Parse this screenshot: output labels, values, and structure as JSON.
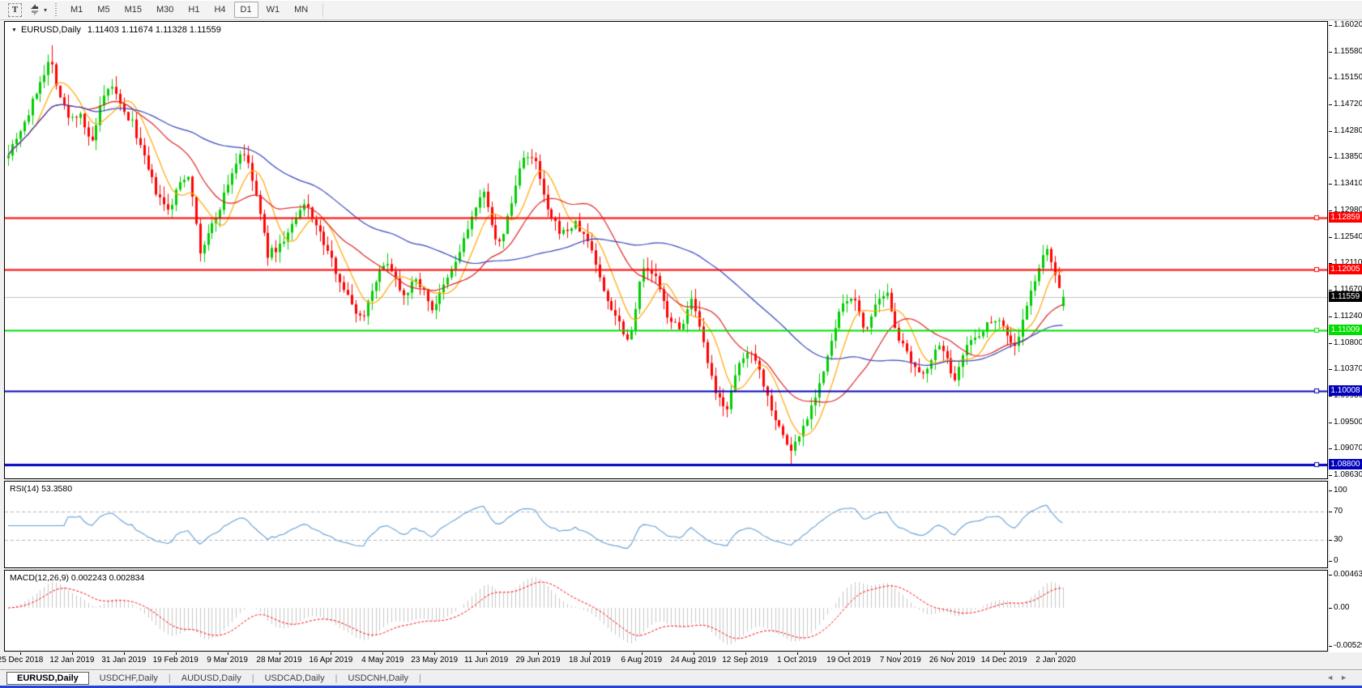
{
  "window": {
    "bottom_strip_color": "#2343d6"
  },
  "toolbar": {
    "text_tool_glyph": "T",
    "dropdown_caret": "▾",
    "timeframes": [
      {
        "label": "M1"
      },
      {
        "label": "M5"
      },
      {
        "label": "M15"
      },
      {
        "label": "M30"
      },
      {
        "label": "H1"
      },
      {
        "label": "H4"
      },
      {
        "label": "D1",
        "active": true
      },
      {
        "label": "W1"
      },
      {
        "label": "MN"
      }
    ]
  },
  "chart": {
    "dropdown_glyph": "▼",
    "title": "EURUSD,Daily",
    "ohlc": "1.11403 1.11674 1.11328 1.11559",
    "open": "1.11403",
    "high": "1.11674",
    "low": "1.11328",
    "close": "1.11559"
  },
  "price_axis": {
    "top_price": 1.1602,
    "bottom_price": 1.0863,
    "ticks": [
      "1.16020",
      "1.15580",
      "1.15150",
      "1.14720",
      "1.14280",
      "1.13850",
      "1.13410",
      "1.12980",
      "1.12540",
      "1.12110",
      "1.11670",
      "1.11240",
      "1.10800",
      "1.10370",
      "1.09930",
      "1.09500",
      "1.09070",
      "1.08630"
    ]
  },
  "levels": [
    {
      "price": 1.12859,
      "label": "1.12859",
      "color": "#ff0000",
      "width": 2,
      "handle": true
    },
    {
      "price": 1.12005,
      "label": "1.12005",
      "color": "#ff0000",
      "width": 2,
      "handle": true
    },
    {
      "price": 1.11559,
      "label": "1.11559",
      "color": "#c0c0c0",
      "chip_bg": "#000000",
      "width": 1,
      "current": true
    },
    {
      "price": 1.11009,
      "label": "1.11009",
      "color": "#00dd00",
      "width": 2,
      "handle": true
    },
    {
      "price": 1.10008,
      "label": "1.10008",
      "color": "#0000bb",
      "width": 2,
      "handle": true
    },
    {
      "price": 1.088,
      "label": "1.08800",
      "color": "#0000bb",
      "width": 3,
      "handle": true
    }
  ],
  "rsi": {
    "label": "RSI(14) 53.3580",
    "period": 14,
    "value": 53.358,
    "max": 100,
    "min": 0,
    "line_color": "#5f9ed6",
    "ticks": [
      {
        "v": 100,
        "label": "100"
      },
      {
        "v": 70,
        "label": "70",
        "dashed": true
      },
      {
        "v": 30,
        "label": "30",
        "dashed": true
      },
      {
        "v": 0,
        "label": "0"
      }
    ]
  },
  "macd": {
    "label": "MACD(12,26,9) 0.002243 0.002834",
    "fast": 12,
    "slow": 26,
    "signal": 9,
    "max": 0.00463,
    "min": -0.005299,
    "hist_color": "#c6c6c6",
    "signal_color": "#ff0000",
    "ticks": [
      {
        "v": 0.00463,
        "label": "0.00463"
      },
      {
        "v": 0,
        "label": "0.00"
      },
      {
        "v": -0.005299,
        "label": "-0.005299"
      }
    ]
  },
  "date_axis": {
    "labels": [
      "25 Dec 2018",
      "12 Jan 2019",
      "31 Jan 2019",
      "19 Feb 2019",
      "9 Mar 2019",
      "28 Mar 2019",
      "16 Apr 2019",
      "4 May 2019",
      "23 May 2019",
      "11 Jun 2019",
      "29 Jun 2019",
      "18 Jul 2019",
      "6 Aug 2019",
      "24 Aug 2019",
      "12 Sep 2019",
      "1 Oct 2019",
      "19 Oct 2019",
      "7 Nov 2019",
      "26 Nov 2019",
      "14 Dec 2019",
      "2 Jan 2020"
    ],
    "first_center": 20,
    "spacing": 63.9
  },
  "tabs": {
    "items": [
      {
        "label": "EURUSD,Daily",
        "active": true
      },
      {
        "label": "USDCHF,Daily"
      },
      {
        "label": "AUDUSD,Daily"
      },
      {
        "label": "USDCAD,Daily"
      },
      {
        "label": "USDCNH,Daily"
      }
    ],
    "scroll_left": "◄",
    "scroll_right": "►"
  },
  "chart_data": {
    "type": "candlestick",
    "symbol": "EURUSD",
    "timeframe": "D1",
    "bars": 265,
    "seed": 7,
    "noise": 0.0013,
    "wick": 0.0018,
    "candle_spacing": 4.93,
    "up_color": "#00cc00",
    "down_color": "#ff0000",
    "moving_averages": [
      {
        "period": 8,
        "color": "#ffa500"
      },
      {
        "period": 21,
        "color": "#dd2222"
      },
      {
        "period": 55,
        "color": "#3344bb"
      }
    ],
    "spike_high": {
      "t": 0.04,
      "price": 1.1569
    },
    "spike_low": {
      "t": 0.742,
      "price": 1.0881
    },
    "price_path_anchors": [
      [
        0.0,
        1.1394
      ],
      [
        0.008,
        1.142
      ],
      [
        0.018,
        1.1452
      ],
      [
        0.03,
        1.151
      ],
      [
        0.04,
        1.1548
      ],
      [
        0.048,
        1.149
      ],
      [
        0.058,
        1.1445
      ],
      [
        0.068,
        1.146
      ],
      [
        0.078,
        1.14
      ],
      [
        0.088,
        1.147
      ],
      [
        0.098,
        1.1505
      ],
      [
        0.108,
        1.146
      ],
      [
        0.118,
        1.144
      ],
      [
        0.13,
        1.1375
      ],
      [
        0.142,
        1.132
      ],
      [
        0.152,
        1.1295
      ],
      [
        0.163,
        1.1345
      ],
      [
        0.172,
        1.136
      ],
      [
        0.181,
        1.1225
      ],
      [
        0.19,
        1.126
      ],
      [
        0.2,
        1.13
      ],
      [
        0.212,
        1.136
      ],
      [
        0.222,
        1.14
      ],
      [
        0.234,
        1.133
      ],
      [
        0.246,
        1.1225
      ],
      [
        0.258,
        1.124
      ],
      [
        0.27,
        1.1275
      ],
      [
        0.282,
        1.131
      ],
      [
        0.295,
        1.126
      ],
      [
        0.308,
        1.121
      ],
      [
        0.322,
        1.1155
      ],
      [
        0.335,
        1.1118
      ],
      [
        0.348,
        1.1185
      ],
      [
        0.36,
        1.1215
      ],
      [
        0.374,
        1.116
      ],
      [
        0.388,
        1.1185
      ],
      [
        0.402,
        1.1135
      ],
      [
        0.414,
        1.1175
      ],
      [
        0.426,
        1.122
      ],
      [
        0.44,
        1.129
      ],
      [
        0.452,
        1.133
      ],
      [
        0.464,
        1.123
      ],
      [
        0.476,
        1.13
      ],
      [
        0.488,
        1.139
      ],
      [
        0.5,
        1.1375
      ],
      [
        0.512,
        1.129
      ],
      [
        0.525,
        1.126
      ],
      [
        0.538,
        1.1275
      ],
      [
        0.552,
        1.124
      ],
      [
        0.565,
        1.116
      ],
      [
        0.578,
        1.112
      ],
      [
        0.589,
        1.108
      ],
      [
        0.6,
        1.12
      ],
      [
        0.612,
        1.1195
      ],
      [
        0.624,
        1.113
      ],
      [
        0.636,
        1.11
      ],
      [
        0.648,
        1.115
      ],
      [
        0.66,
        1.107
      ],
      [
        0.67,
        1.0995
      ],
      [
        0.682,
        1.0975
      ],
      [
        0.694,
        1.105
      ],
      [
        0.706,
        1.107
      ],
      [
        0.718,
        1.1
      ],
      [
        0.73,
        1.0945
      ],
      [
        0.742,
        1.0902
      ],
      [
        0.752,
        1.0935
      ],
      [
        0.763,
        1.0985
      ],
      [
        0.775,
        1.1045
      ],
      [
        0.788,
        1.113
      ],
      [
        0.8,
        1.116
      ],
      [
        0.812,
        1.11
      ],
      [
        0.824,
        1.1145
      ],
      [
        0.834,
        1.1158
      ],
      [
        0.844,
        1.109
      ],
      [
        0.855,
        1.105
      ],
      [
        0.865,
        1.1022
      ],
      [
        0.876,
        1.106
      ],
      [
        0.886,
        1.1075
      ],
      [
        0.896,
        1.1015
      ],
      [
        0.906,
        1.107
      ],
      [
        0.917,
        1.109
      ],
      [
        0.928,
        1.111
      ],
      [
        0.938,
        1.1125
      ],
      [
        0.948,
        1.109
      ],
      [
        0.955,
        1.1072
      ],
      [
        0.966,
        1.114
      ],
      [
        0.977,
        1.1205
      ],
      [
        0.986,
        1.1235
      ],
      [
        0.993,
        1.119
      ],
      [
        1.0,
        1.1156
      ]
    ]
  }
}
